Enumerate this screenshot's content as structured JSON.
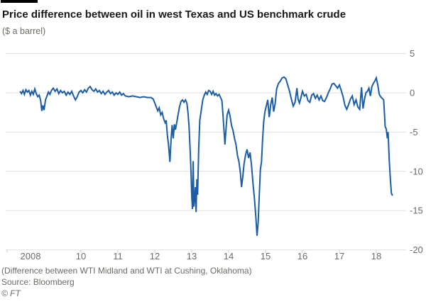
{
  "header": {
    "title": "Price difference between oil in west Texas and US benchmark crude",
    "subtitle": "($ a barrel)"
  },
  "footer": {
    "note": "(Difference between WTI Midland and WTI at Cushing, Oklahoma)",
    "source": "Source: Bloomberg",
    "copyright": "© FT"
  },
  "colors": {
    "line": "#1b5da6",
    "grid": "#e2dfdb",
    "tick": "#cfccc8",
    "axis_text": "#6e6a66",
    "title_text": "#1a1817",
    "top_rule": "#000000",
    "background": "#ffffff"
  },
  "chart_data": {
    "type": "line",
    "title": "Price difference between oil in west Texas and US benchmark crude",
    "subtitle": "($ a barrel)",
    "xlabel": "",
    "ylabel": "$ a barrel",
    "grid": "horizontal",
    "legend": "none",
    "x_axis": {
      "range": [
        2008.2,
        2018.85
      ],
      "ticks": [
        {
          "label": "2008",
          "year": 2008
        },
        {
          "label": "10",
          "year": 2010
        },
        {
          "label": "11",
          "year": 2011
        },
        {
          "label": "12",
          "year": 2012
        },
        {
          "label": "13",
          "year": 2013
        },
        {
          "label": "14",
          "year": 2014
        },
        {
          "label": "15",
          "year": 2015
        },
        {
          "label": "16",
          "year": 2016
        },
        {
          "label": "17",
          "year": 2017
        },
        {
          "label": "18",
          "year": 2018
        }
      ]
    },
    "y_axis": {
      "side": "right",
      "range": [
        -20,
        5
      ],
      "ticks": [
        5,
        0,
        -5,
        -10,
        -15,
        -20
      ]
    },
    "series": [
      {
        "name": "WTI Midland minus WTI Cushing",
        "x": [
          2008.35,
          2008.39,
          2008.43,
          2008.47,
          2008.51,
          2008.55,
          2008.59,
          2008.63,
          2008.67,
          2008.71,
          2008.75,
          2008.79,
          2008.83,
          2008.87,
          2008.91,
          2008.94,
          2008.97,
          2009.0,
          2009.04,
          2009.08,
          2009.12,
          2009.16,
          2009.2,
          2009.25,
          2009.3,
          2009.35,
          2009.4,
          2009.45,
          2009.5,
          2009.55,
          2009.6,
          2009.65,
          2009.7,
          2009.75,
          2009.8,
          2009.85,
          2009.9,
          2009.95,
          2010.0,
          2010.05,
          2010.1,
          2010.15,
          2010.2,
          2010.25,
          2010.3,
          2010.35,
          2010.4,
          2010.45,
          2010.5,
          2010.55,
          2010.6,
          2010.65,
          2010.7,
          2010.75,
          2010.8,
          2010.85,
          2010.9,
          2010.95,
          2011.0,
          2011.05,
          2011.1,
          2011.15,
          2011.2,
          2011.3,
          2011.4,
          2011.5,
          2011.6,
          2011.7,
          2011.8,
          2011.9,
          2011.96,
          2012.0,
          2012.04,
          2012.08,
          2012.12,
          2012.16,
          2012.2,
          2012.24,
          2012.28,
          2012.31,
          2012.34,
          2012.37,
          2012.39,
          2012.41,
          2012.44,
          2012.47,
          2012.5,
          2012.53,
          2012.56,
          2012.59,
          2012.63,
          2012.67,
          2012.71,
          2012.75,
          2012.79,
          2012.83,
          2012.87,
          2012.9,
          2012.93,
          2012.96,
          2012.98,
          2013.0,
          2013.02,
          2013.04,
          2013.06,
          2013.08,
          2013.1,
          2013.12,
          2013.14,
          2013.16,
          2013.19,
          2013.22,
          2013.26,
          2013.3,
          2013.34,
          2013.38,
          2013.42,
          2013.46,
          2013.5,
          2013.54,
          2013.58,
          2013.62,
          2013.66,
          2013.7,
          2013.74,
          2013.78,
          2013.82,
          2013.85,
          2013.88,
          2013.9,
          2013.93,
          2013.96,
          2014.0,
          2014.04,
          2014.08,
          2014.12,
          2014.16,
          2014.2,
          2014.24,
          2014.28,
          2014.32,
          2014.35,
          2014.38,
          2014.42,
          2014.46,
          2014.5,
          2014.54,
          2014.58,
          2014.62,
          2014.66,
          2014.7,
          2014.74,
          2014.77,
          2014.8,
          2014.83,
          2014.86,
          2014.89,
          2014.92,
          2014.95,
          2014.98,
          2015.02,
          2015.06,
          2015.1,
          2015.14,
          2015.18,
          2015.22,
          2015.26,
          2015.3,
          2015.35,
          2015.4,
          2015.45,
          2015.5,
          2015.55,
          2015.6,
          2015.65,
          2015.7,
          2015.75,
          2015.8,
          2015.85,
          2015.88,
          2015.92,
          2015.96,
          2016.0,
          2016.05,
          2016.1,
          2016.15,
          2016.2,
          2016.25,
          2016.3,
          2016.35,
          2016.4,
          2016.45,
          2016.5,
          2016.55,
          2016.6,
          2016.65,
          2016.7,
          2016.75,
          2016.8,
          2016.85,
          2016.9,
          2016.95,
          2017.0,
          2017.05,
          2017.1,
          2017.15,
          2017.2,
          2017.25,
          2017.3,
          2017.35,
          2017.4,
          2017.45,
          2017.5,
          2017.55,
          2017.6,
          2017.64,
          2017.68,
          2017.72,
          2017.76,
          2017.8,
          2017.84,
          2017.88,
          2017.92,
          2017.96,
          2018.0,
          2018.04,
          2018.08,
          2018.12,
          2018.16,
          2018.2,
          2018.24,
          2018.27,
          2018.3,
          2018.32,
          2018.35,
          2018.38,
          2018.41,
          2018.44
        ],
        "y": [
          0.2,
          -0.1,
          0.3,
          -0.2,
          0.4,
          0.1,
          0.3,
          -0.3,
          0.2,
          -0.2,
          0.5,
          -0.1,
          -0.5,
          -0.3,
          -1.0,
          -2.3,
          -1.6,
          -2.2,
          -0.9,
          -0.4,
          0.1,
          -0.2,
          0.3,
          0.6,
          0.2,
          0.5,
          -0.1,
          0.3,
          0.0,
          0.2,
          -0.3,
          0.1,
          -0.2,
          0.2,
          -0.4,
          -0.9,
          -0.5,
          0.1,
          0.3,
          0.0,
          0.4,
          0.1,
          0.6,
          0.8,
          0.4,
          0.2,
          0.5,
          0.1,
          0.3,
          -0.1,
          0.2,
          -0.2,
          0.1,
          0.3,
          -0.1,
          0.1,
          -0.3,
          0.0,
          -0.2,
          0.1,
          -0.3,
          -0.1,
          -0.4,
          -0.5,
          -0.4,
          -0.5,
          -0.6,
          -0.5,
          -0.6,
          -0.6,
          -0.8,
          -1.3,
          -1.8,
          -2.3,
          -1.9,
          -2.8,
          -2.5,
          -3.3,
          -3.8,
          -3.5,
          -5.4,
          -6.5,
          -7.6,
          -8.8,
          -6.0,
          -4.1,
          -5.8,
          -4.0,
          -4.7,
          -3.9,
          -2.8,
          -1.8,
          -1.1,
          -0.9,
          -1.2,
          -0.9,
          -1.3,
          -2.5,
          -4.5,
          -7.5,
          -10.0,
          -13.0,
          -14.8,
          -8.7,
          -14.5,
          -13.5,
          -12.0,
          -15.2,
          -11.0,
          -13.0,
          -7.0,
          -3.5,
          -2.2,
          -0.9,
          -0.3,
          0.1,
          -0.2,
          0.3,
          0.2,
          -0.2,
          0.2,
          -0.3,
          -0.1,
          -0.4,
          -0.2,
          -0.6,
          -1.0,
          -3.0,
          -5.2,
          -6.6,
          -4.5,
          -2.8,
          -2.2,
          -3.0,
          -4.2,
          -4.8,
          -5.8,
          -6.6,
          -8.0,
          -8.8,
          -10.2,
          -12.0,
          -10.8,
          -9.0,
          -7.9,
          -7.2,
          -8.3,
          -7.6,
          -9.2,
          -11.5,
          -13.5,
          -16.0,
          -18.2,
          -16.5,
          -13.0,
          -9.8,
          -8.8,
          -6.0,
          -3.7,
          -2.5,
          -1.7,
          -0.9,
          -3.1,
          -1.5,
          -0.6,
          -2.4,
          -1.4,
          0.5,
          1.2,
          1.5,
          1.9,
          2.0,
          1.8,
          1.0,
          0.2,
          -0.8,
          -1.7,
          -1.2,
          0.6,
          -0.8,
          -1.3,
          -0.6,
          0.2,
          -0.4,
          -0.2,
          -1.0,
          -1.2,
          -0.3,
          -0.1,
          -0.7,
          -0.3,
          -0.9,
          -0.4,
          -1.0,
          -1.1,
          -0.6,
          0.0,
          0.5,
          1.1,
          1.2,
          0.9,
          0.6,
          1.0,
          0.3,
          -0.5,
          -1.6,
          -2.1,
          -1.5,
          -0.8,
          -0.4,
          -1.5,
          -0.9,
          -1.8,
          -2.1,
          0.7,
          -2.0,
          -0.8,
          0.0,
          0.2,
          0.6,
          -0.4,
          0.8,
          1.2,
          1.5,
          1.9,
          1.0,
          -0.2,
          -0.5,
          -0.7,
          -0.9,
          -4.3,
          -4.6,
          -5.8,
          -5.0,
          -8.5,
          -11.0,
          -12.8,
          -13.1
        ]
      }
    ]
  }
}
